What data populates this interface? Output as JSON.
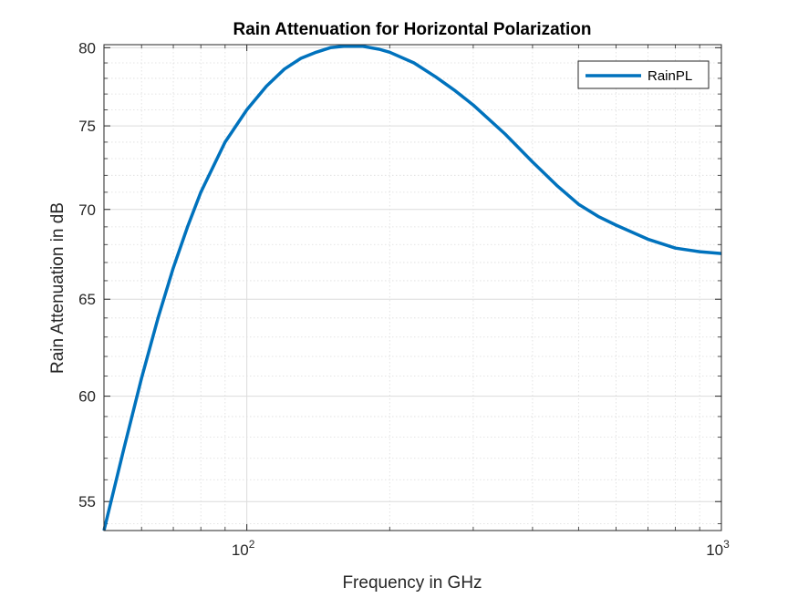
{
  "chart_data": {
    "type": "line",
    "title": "Rain Attenuation for Horizontal Polarization",
    "xlabel": "Frequency in GHz",
    "ylabel": "Rain Attenuation in dB",
    "xscale": "log",
    "yscale": "log",
    "xlim": [
      50,
      1000
    ],
    "ylim": [
      53.7,
      80.2
    ],
    "grid": true,
    "minor_grid": true,
    "legend_position": "top-right",
    "x_ticks": [
      {
        "value": 100,
        "base": "10",
        "exp": "2"
      },
      {
        "value": 1000,
        "base": "10",
        "exp": "3"
      }
    ],
    "y_ticks": [
      55,
      60,
      65,
      70,
      75,
      80
    ],
    "colors": {
      "series": "#0072bd",
      "axis": "#262626",
      "grid": "#dcdcdc"
    },
    "series": [
      {
        "name": "RainPL",
        "x": [
          50,
          55,
          60,
          65,
          70,
          75,
          80,
          90,
          100,
          110,
          120,
          130,
          140,
          150,
          160,
          175,
          190,
          200,
          225,
          250,
          275,
          300,
          350,
          400,
          450,
          500,
          550,
          600,
          700,
          800,
          900,
          1000
        ],
        "y": [
          53.7,
          57.4,
          60.9,
          64.0,
          66.7,
          69.0,
          71.0,
          74.0,
          76.0,
          77.5,
          78.6,
          79.3,
          79.7,
          80.0,
          80.1,
          80.1,
          79.9,
          79.7,
          79.0,
          78.1,
          77.2,
          76.3,
          74.5,
          72.8,
          71.4,
          70.3,
          69.6,
          69.1,
          68.3,
          67.8,
          67.6,
          67.5
        ]
      }
    ]
  }
}
